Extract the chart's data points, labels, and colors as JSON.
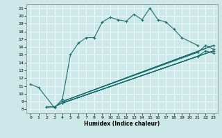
{
  "xlabel": "Humidex (Indice chaleur)",
  "bg_color": "#cde8e8",
  "line_color": "#1a6e6e",
  "xlim": [
    -0.5,
    23.5
  ],
  "ylim": [
    7.5,
    21.5
  ],
  "xticks": [
    0,
    1,
    2,
    3,
    4,
    5,
    6,
    7,
    8,
    9,
    10,
    11,
    12,
    13,
    14,
    15,
    16,
    17,
    18,
    19,
    20,
    21,
    22,
    23
  ],
  "yticks": [
    8,
    9,
    10,
    11,
    12,
    13,
    14,
    15,
    16,
    17,
    18,
    19,
    20,
    21
  ],
  "series1": {
    "x": [
      0,
      1,
      3,
      4,
      5,
      6,
      7,
      8,
      9,
      10,
      11,
      12,
      13,
      14,
      15,
      16,
      17,
      18,
      19,
      21
    ],
    "y": [
      11.2,
      10.8,
      8.2,
      9.3,
      15.0,
      16.5,
      17.2,
      17.2,
      19.2,
      19.8,
      19.5,
      19.3,
      20.2,
      19.5,
      21.0,
      19.5,
      19.2,
      18.3,
      17.2,
      16.2
    ]
  },
  "series2": {
    "x": [
      2,
      3,
      4,
      23
    ],
    "y": [
      8.3,
      8.3,
      9.0,
      16.2
    ]
  },
  "series3": {
    "x": [
      2,
      3,
      4,
      23
    ],
    "y": [
      8.3,
      8.3,
      8.8,
      15.5
    ]
  },
  "series4": {
    "x": [
      4,
      21,
      22,
      23
    ],
    "y": [
      9.0,
      15.3,
      16.2,
      15.7
    ]
  },
  "series5": {
    "x": [
      4,
      21,
      22,
      23
    ],
    "y": [
      8.8,
      14.8,
      15.5,
      15.2
    ]
  }
}
